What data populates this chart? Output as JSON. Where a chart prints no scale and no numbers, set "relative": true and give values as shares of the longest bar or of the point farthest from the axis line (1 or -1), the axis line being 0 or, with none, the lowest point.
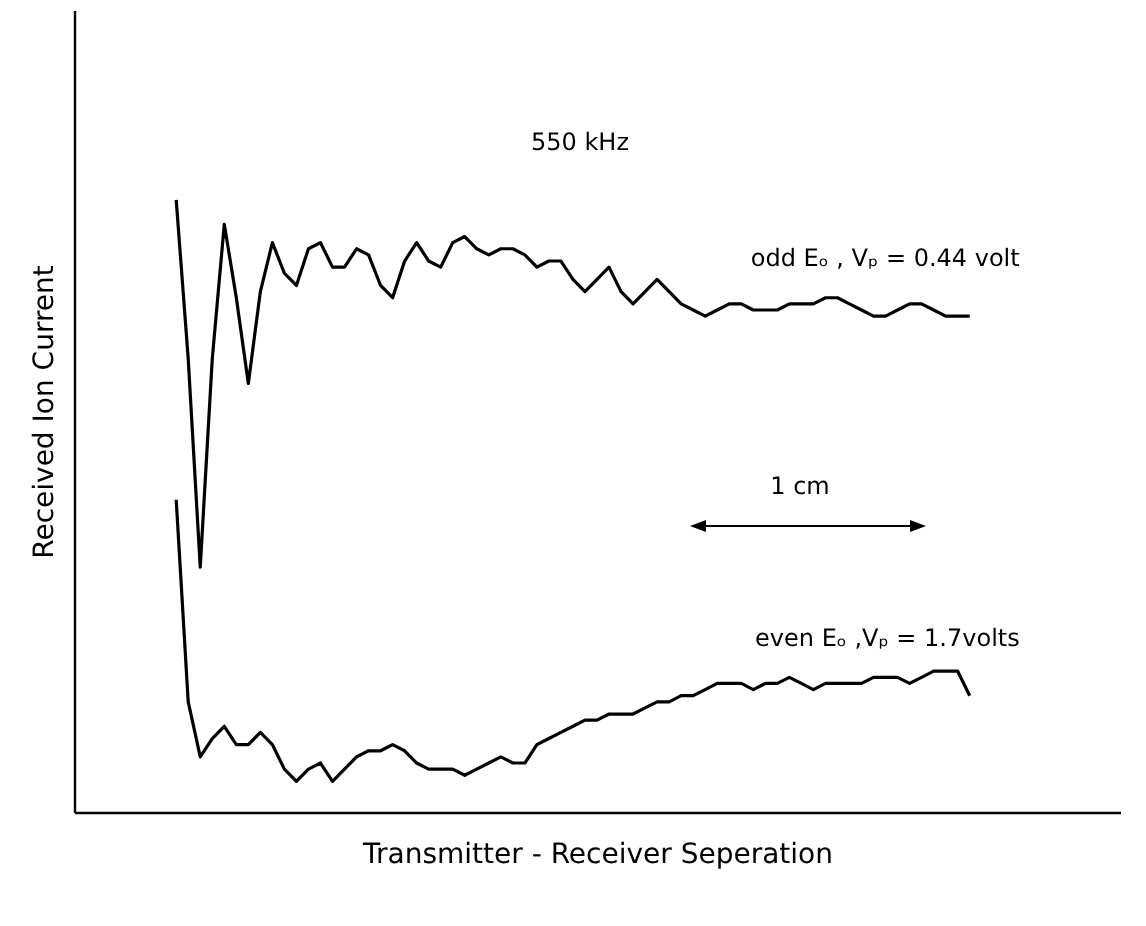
{
  "chart_data": {
    "type": "line",
    "relative": true,
    "xlabel": "Transmitter - Receiver  Seperation",
    "ylabel": "Received  Ion  Current",
    "categories": [
      null,
      null,
      null,
      null,
      null,
      null,
      null,
      null,
      null,
      null,
      null,
      null,
      null,
      null,
      null,
      null,
      null,
      null,
      null,
      null,
      null,
      null,
      null,
      null,
      null,
      null,
      null,
      null,
      null,
      null,
      null,
      null,
      null,
      null,
      null,
      null,
      null,
      null,
      null,
      null,
      null,
      null,
      null,
      null,
      null,
      null,
      null,
      null,
      null,
      null,
      null,
      null,
      null,
      null,
      null,
      null,
      null,
      null,
      null,
      null,
      null,
      null,
      null,
      null,
      null,
      null,
      null,
      null,
      null,
      null,
      null,
      null,
      null,
      null,
      null,
      null,
      null,
      null,
      null,
      null,
      null,
      null,
      null,
      null,
      null,
      null,
      null
    ],
    "annotations": [
      "550 kHz",
      "1 cm"
    ],
    "series": [
      {
        "name": "odd  Eₒ , Vₚ = 0.44 volt",
        "color": "#000000",
        "values": [
          null,
          null,
          null,
          null,
          null,
          null,
          null,
          null,
          1.0,
          0.74,
          0.4,
          0.74,
          0.96,
          0.84,
          0.7,
          0.85,
          0.93,
          0.88,
          0.86,
          0.92,
          0.93,
          0.89,
          0.89,
          0.92,
          0.91,
          0.86,
          0.84,
          0.9,
          0.93,
          0.9,
          0.89,
          0.93,
          0.94,
          0.92,
          0.91,
          0.92,
          0.92,
          0.91,
          0.89,
          0.9,
          0.9,
          0.87,
          0.85,
          0.87,
          0.89,
          0.85,
          0.83,
          0.85,
          0.87,
          0.85,
          0.83,
          0.82,
          0.81,
          0.82,
          0.83,
          0.83,
          0.82,
          0.82,
          0.82,
          0.83,
          0.83,
          0.83,
          0.84,
          0.84,
          0.83,
          0.82,
          0.81,
          0.81,
          0.82,
          0.83,
          0.83,
          0.82,
          0.81,
          0.81,
          0.81,
          null,
          null,
          null,
          null,
          null,
          null,
          null,
          null,
          null,
          null,
          null,
          null
        ]
      },
      {
        "name": "even  Eₒ ,Vₚ = 1.7volts",
        "color": "#000000",
        "values": [
          null,
          null,
          null,
          null,
          null,
          null,
          null,
          null,
          0.51,
          0.18,
          0.09,
          0.12,
          0.14,
          0.11,
          0.11,
          0.13,
          0.11,
          0.07,
          0.05,
          0.07,
          0.08,
          0.05,
          0.07,
          0.09,
          0.1,
          0.1,
          0.11,
          0.1,
          0.08,
          0.07,
          0.07,
          0.07,
          0.06,
          0.07,
          0.08,
          0.09,
          0.08,
          0.08,
          0.11,
          0.12,
          0.13,
          0.14,
          0.15,
          0.15,
          0.16,
          0.16,
          0.16,
          0.17,
          0.18,
          0.18,
          0.19,
          0.19,
          0.2,
          0.21,
          0.21,
          0.21,
          0.2,
          0.21,
          0.21,
          0.22,
          0.21,
          0.2,
          0.21,
          0.21,
          0.21,
          0.21,
          0.22,
          0.22,
          0.22,
          0.21,
          0.22,
          0.23,
          0.23,
          0.23,
          0.19,
          null,
          null,
          null,
          null,
          null,
          null,
          null,
          null,
          null,
          null,
          null,
          null
        ]
      }
    ]
  }
}
